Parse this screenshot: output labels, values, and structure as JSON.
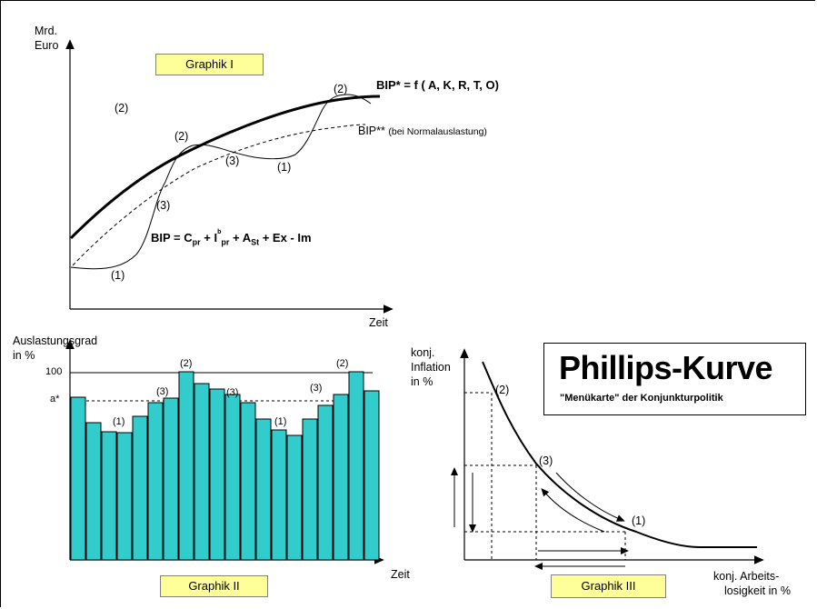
{
  "graphik1": {
    "label": "Graphik I",
    "y_axis_line1": "Mrd.",
    "y_axis_line2": "Euro",
    "x_axis": "Zeit",
    "bip_star": "BIP* = f ( A, K, R, T, O)",
    "bip_2star": "BIP**",
    "bip_2star_note": "(bei Normalauslastung)",
    "formula": {
      "bip": "BIP = C",
      "c_sub": "pr",
      "plus1": " + I",
      "i_sup": "b",
      "i_sub": "pr",
      "plus2": " + A",
      "a_sub": "St",
      "rest": " + Ex - Im"
    },
    "phase_labels": [
      "(2)",
      "(2)",
      "(2)",
      "(3)",
      "(1)",
      "(3)",
      "(1)"
    ]
  },
  "graphik2": {
    "label": "Graphik II",
    "y_axis_line1": "Auslastungsgrad",
    "y_axis_line2": "in %",
    "x_axis": "Zeit",
    "tick_100": "100",
    "tick_astar": "a*",
    "bar_color": "#33cccc",
    "phase_labels": [
      "(1)",
      "(3)",
      "(2)",
      "(3)",
      "(1)",
      "(3)",
      "(2)"
    ]
  },
  "graphik3": {
    "label": "Graphik III",
    "y_axis_line1": "konj.",
    "y_axis_line2": "Inflation",
    "y_axis_line3": "in %",
    "x_axis_line1": "konj. Arbeits-",
    "x_axis_line2": "losigkeit in %",
    "point_labels": [
      "(2)",
      "(3)",
      "(1)"
    ]
  },
  "phillips": {
    "title": "Phillips-Kurve",
    "subtitle": "\"Menükarte\" der Konjunkturpolitik"
  }
}
